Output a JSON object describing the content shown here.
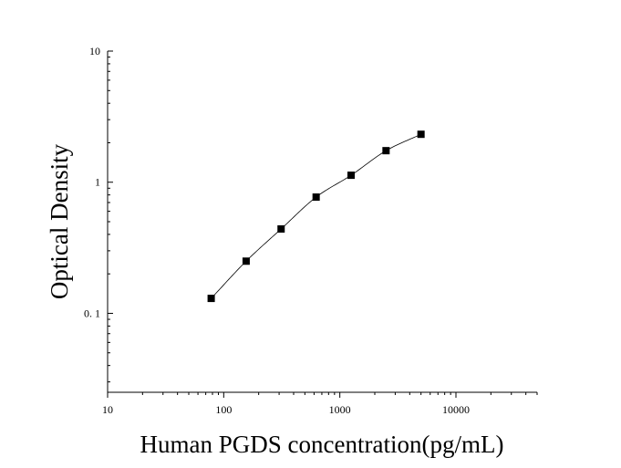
{
  "chart_data": {
    "type": "scatter",
    "title": "",
    "xlabel": "Human PGDS concentration(pg/mL)",
    "ylabel": "Optical Density",
    "x_scale": "log",
    "y_scale": "log",
    "xlim": [
      10,
      50000
    ],
    "ylim": [
      0.025,
      10
    ],
    "x_ticks": [
      {
        "value": 10,
        "label": "10"
      },
      {
        "value": 100,
        "label": "100"
      },
      {
        "value": 1000,
        "label": "1000"
      },
      {
        "value": 10000,
        "label": "10000"
      }
    ],
    "y_ticks": [
      {
        "value": 0.1,
        "label": "0. 1"
      },
      {
        "value": 1,
        "label": "1"
      },
      {
        "value": 10,
        "label": "10"
      }
    ],
    "grid": false,
    "legend": "none",
    "series": [
      {
        "x": [
          78,
          156,
          312,
          625,
          1250,
          2500,
          5000
        ],
        "y": [
          0.13,
          0.25,
          0.44,
          0.77,
          1.13,
          1.74,
          2.32
        ],
        "marker": "square",
        "fit_curve": true,
        "color": "#000000"
      }
    ]
  }
}
